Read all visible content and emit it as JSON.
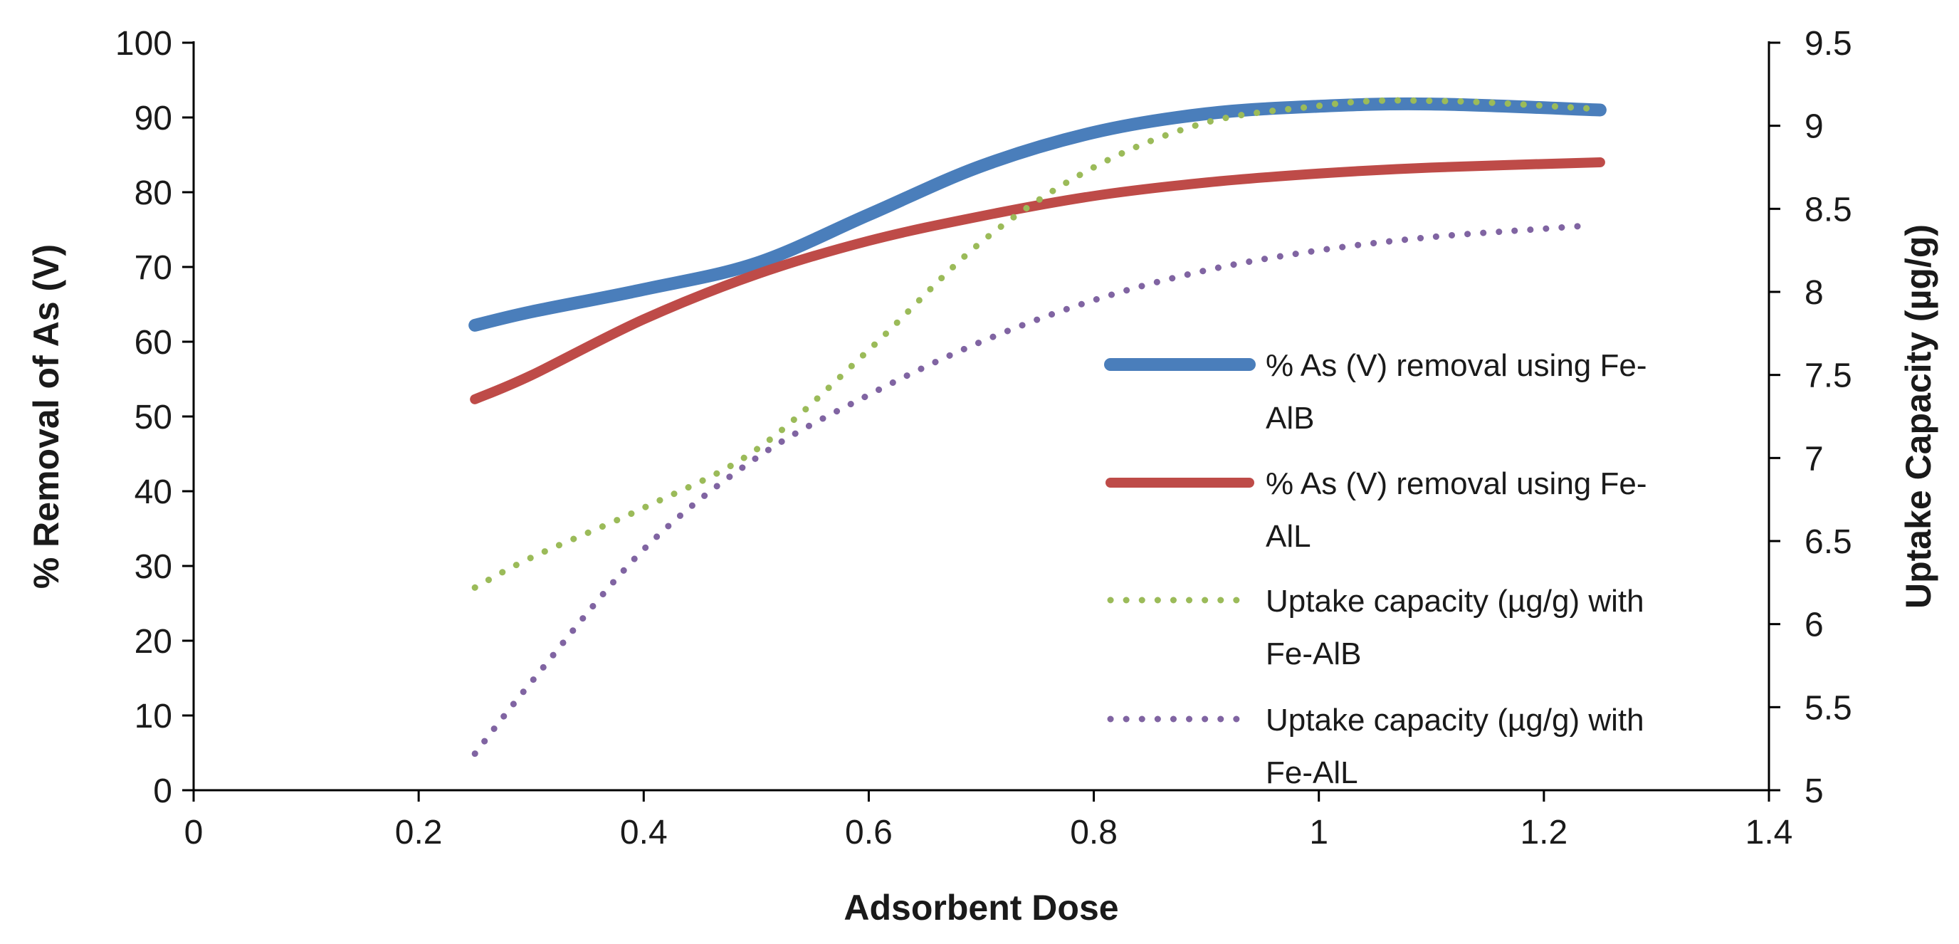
{
  "chart_data": {
    "type": "line",
    "title": "",
    "xlabel": "Adsorbent Dose",
    "ylabel": "% Removal of As (V)",
    "y2label": "Uptake Capacity (µg/g)",
    "xlim": [
      0,
      1.4
    ],
    "ylim": [
      0,
      100
    ],
    "y2lim": [
      5,
      9.5
    ],
    "x_ticks": [
      "0",
      "0.2",
      "0.4",
      "0.6",
      "0.8",
      "1",
      "1.2",
      "1.4"
    ],
    "y_ticks": [
      "0",
      "10",
      "20",
      "30",
      "40",
      "50",
      "60",
      "70",
      "80",
      "90",
      "100"
    ],
    "y2_ticks": [
      "5",
      "5.5",
      "6",
      "6.5",
      "7",
      "7.5",
      "8",
      "8.5",
      "9",
      "9.5"
    ],
    "grid": false,
    "legend_position": "right-center",
    "series": [
      {
        "name_line1": "% As (V) removal using Fe-",
        "name_line2": "AlB",
        "axis": "left",
        "style": "solid-thick",
        "color": "#4a7ebb",
        "x": [
          0.25,
          0.3,
          0.4,
          0.5,
          0.6,
          0.7,
          0.8,
          0.9,
          1.0,
          1.1,
          1.25
        ],
        "y": [
          62.2,
          64.0,
          67.0,
          70.5,
          77.0,
          83.5,
          88.0,
          90.5,
          91.5,
          91.8,
          91.0
        ]
      },
      {
        "name_line1": "% As (V) removal using Fe-",
        "name_line2": "AlL",
        "axis": "left",
        "style": "solid",
        "color": "#be4b48",
        "x": [
          0.25,
          0.3,
          0.4,
          0.5,
          0.6,
          0.7,
          0.8,
          0.9,
          1.0,
          1.1,
          1.25
        ],
        "y": [
          52.3,
          55.5,
          63.0,
          69.0,
          73.5,
          76.8,
          79.5,
          81.3,
          82.5,
          83.3,
          84.0
        ]
      },
      {
        "name_line1": "Uptake capacity (µg/g) with",
        "name_line2": "Fe-AlB",
        "axis": "right",
        "style": "dotted",
        "color": "#9bbb59",
        "x": [
          0.25,
          0.3,
          0.4,
          0.5,
          0.6,
          0.7,
          0.8,
          0.9,
          1.0,
          1.05,
          1.1,
          1.15,
          1.25
        ],
        "y": [
          6.22,
          6.4,
          6.7,
          7.05,
          7.65,
          8.3,
          8.75,
          9.02,
          9.12,
          9.15,
          9.15,
          9.14,
          9.1
        ]
      },
      {
        "name_line1": "Uptake capacity (µg/g) with",
        "name_line2": "Fe-AlL",
        "axis": "right",
        "style": "dotted",
        "color": "#8064a2",
        "x": [
          0.25,
          0.3,
          0.4,
          0.5,
          0.6,
          0.7,
          0.8,
          0.9,
          1.0,
          1.1,
          1.2,
          1.24
        ],
        "y": [
          5.22,
          5.65,
          6.45,
          7.0,
          7.38,
          7.7,
          7.95,
          8.13,
          8.25,
          8.33,
          8.38,
          8.4
        ]
      }
    ]
  }
}
